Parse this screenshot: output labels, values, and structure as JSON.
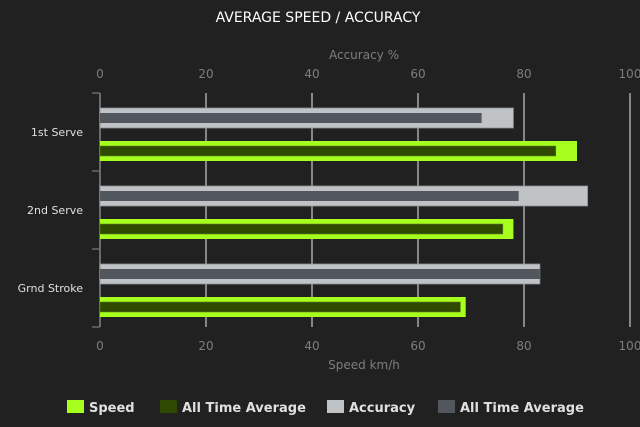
{
  "chart_data": {
    "type": "bar",
    "orientation": "horizontal",
    "title": "AVERAGE SPEED / ACCURACY",
    "categories": [
      "1st Serve",
      "2nd Serve",
      "Grnd Stroke"
    ],
    "top_axis": {
      "label": "Accuracy %",
      "range": [
        0,
        100
      ],
      "ticks": [
        "0",
        "20",
        "40",
        "60",
        "80",
        "100"
      ]
    },
    "bottom_axis": {
      "label": "Speed km/h",
      "range": [
        0,
        100
      ],
      "ticks": [
        "0",
        "20",
        "40",
        "60",
        "80",
        "100"
      ]
    },
    "grid": true,
    "legend_position": "bottom",
    "series": [
      {
        "name": "Speed",
        "axis": "bottom",
        "values": [
          90,
          78,
          69
        ],
        "color": "#a6ff1c"
      },
      {
        "name": "All Time Average",
        "axis": "bottom",
        "values": [
          86,
          76,
          68
        ],
        "color": "#2f4a00"
      },
      {
        "name": "Accuracy",
        "axis": "top",
        "values": [
          78,
          92,
          83
        ],
        "color": "#bfc3c5"
      },
      {
        "name": "All Time Average",
        "axis": "top",
        "values": [
          72,
          79,
          83
        ],
        "color": "#52575d"
      }
    ]
  }
}
